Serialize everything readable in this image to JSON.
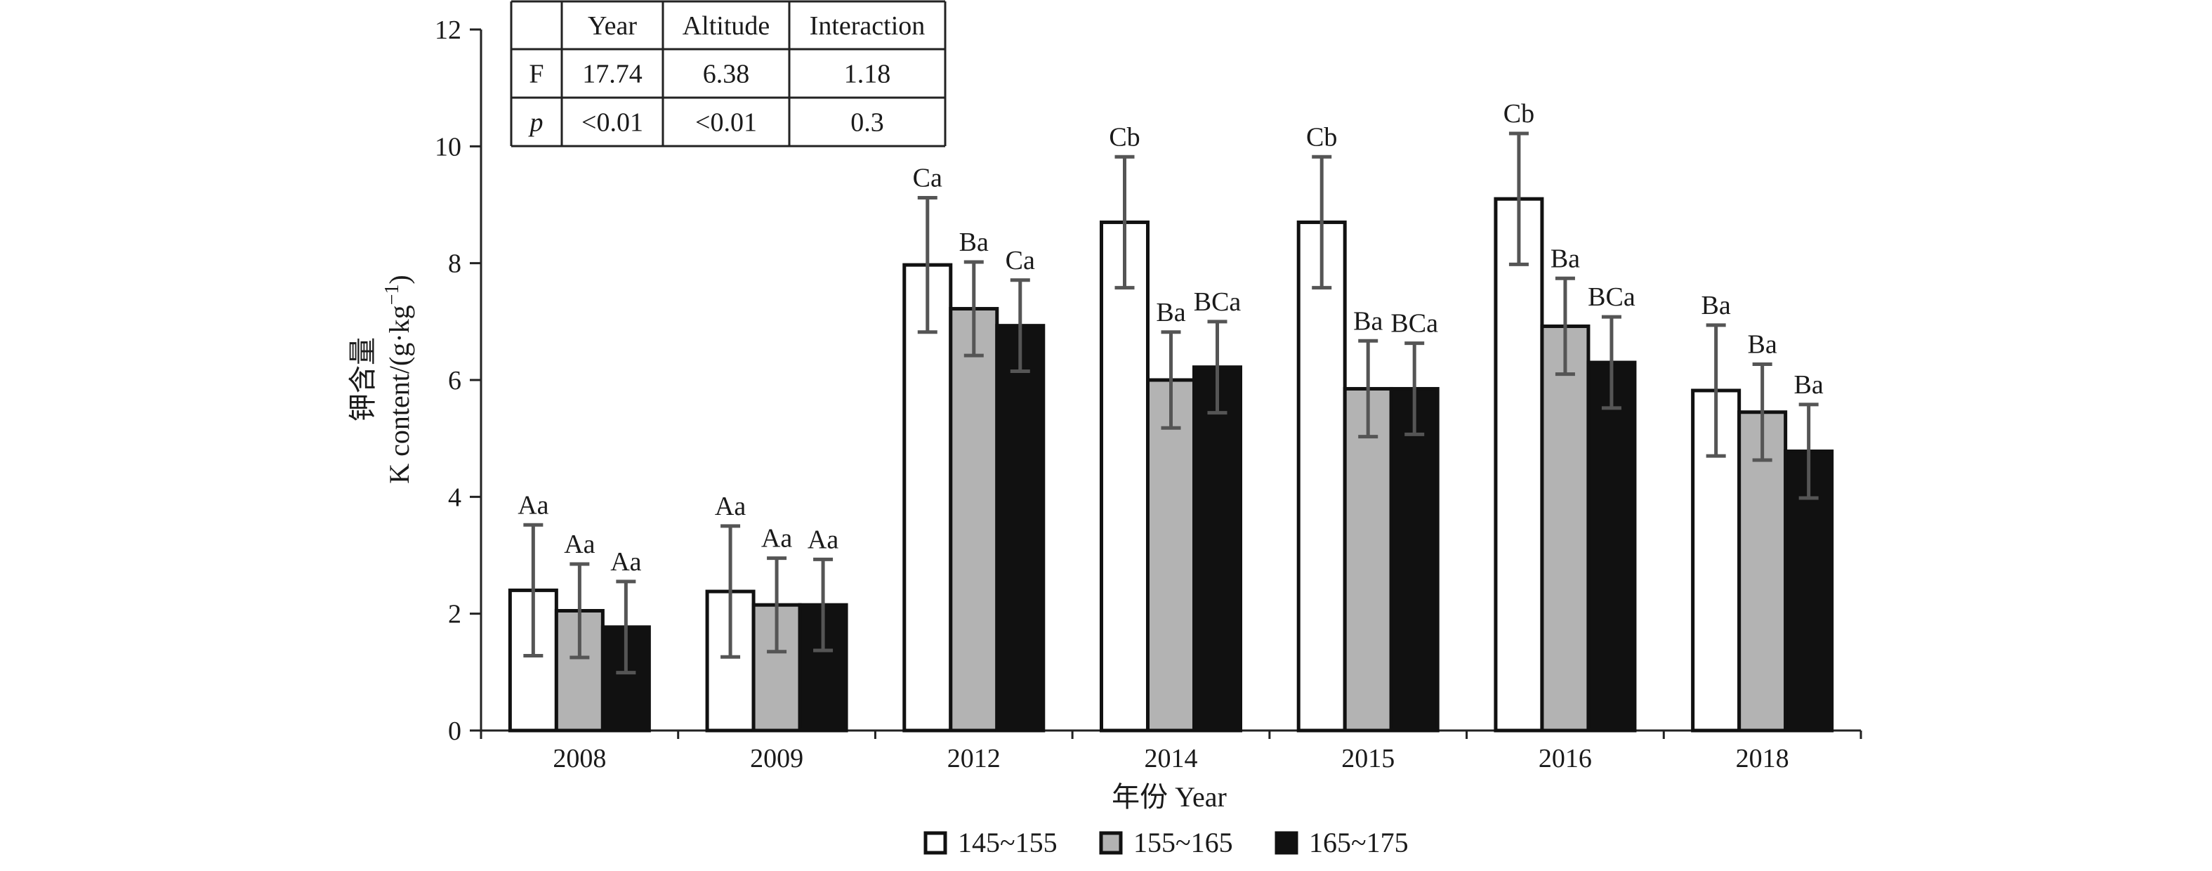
{
  "chart_data": {
    "type": "bar",
    "categories": [
      "2008",
      "2009",
      "2012",
      "2014",
      "2015",
      "2016",
      "2018"
    ],
    "series": [
      {
        "name": "145~155",
        "color": "#ffffff",
        "values": [
          2.4,
          2.38,
          7.97,
          8.7,
          8.7,
          9.1,
          5.82
        ],
        "errors": [
          1.12,
          1.12,
          1.15,
          1.12,
          1.12,
          1.12,
          1.12
        ],
        "labels": [
          "Aa",
          "Aa",
          "Ca",
          "Cb",
          "Cb",
          "Cb",
          "Ba"
        ]
      },
      {
        "name": "155~165",
        "color": "#b3b3b3",
        "values": [
          2.05,
          2.15,
          7.22,
          6.0,
          5.85,
          6.92,
          5.45
        ],
        "errors": [
          0.8,
          0.8,
          0.8,
          0.82,
          0.82,
          0.82,
          0.82
        ],
        "labels": [
          "Aa",
          "Aa",
          "Ba",
          "Ba",
          "Ba",
          "Ba",
          "Ba"
        ]
      },
      {
        "name": "165~175",
        "color": "#111111",
        "values": [
          1.77,
          2.15,
          6.93,
          6.22,
          5.85,
          6.3,
          4.78
        ],
        "errors": [
          0.78,
          0.78,
          0.78,
          0.78,
          0.78,
          0.78,
          0.8
        ],
        "labels": [
          "Aa",
          "Aa",
          "Ca",
          "BCa",
          "BCa",
          "BCa",
          "Ba"
        ]
      }
    ],
    "ylim": [
      0,
      12
    ],
    "yticks": [
      "0",
      "2",
      "4",
      "6",
      "8",
      "10",
      "12"
    ],
    "ylabel_cn": "钾含量",
    "ylabel_en": "K content/(g·kg",
    "ylabel_exp": "−1",
    "ylabel_close": ")",
    "xlabel": "年份 Year",
    "grid": false,
    "legend_position": "bottom-center",
    "stats_table": {
      "headers": [
        "",
        "Year",
        "Altitude",
        "Interaction"
      ],
      "rows": [
        [
          "F",
          "17.74",
          "6.38",
          "1.18"
        ],
        [
          "p",
          "<0.01",
          "<0.01",
          "0.3"
        ]
      ]
    }
  }
}
